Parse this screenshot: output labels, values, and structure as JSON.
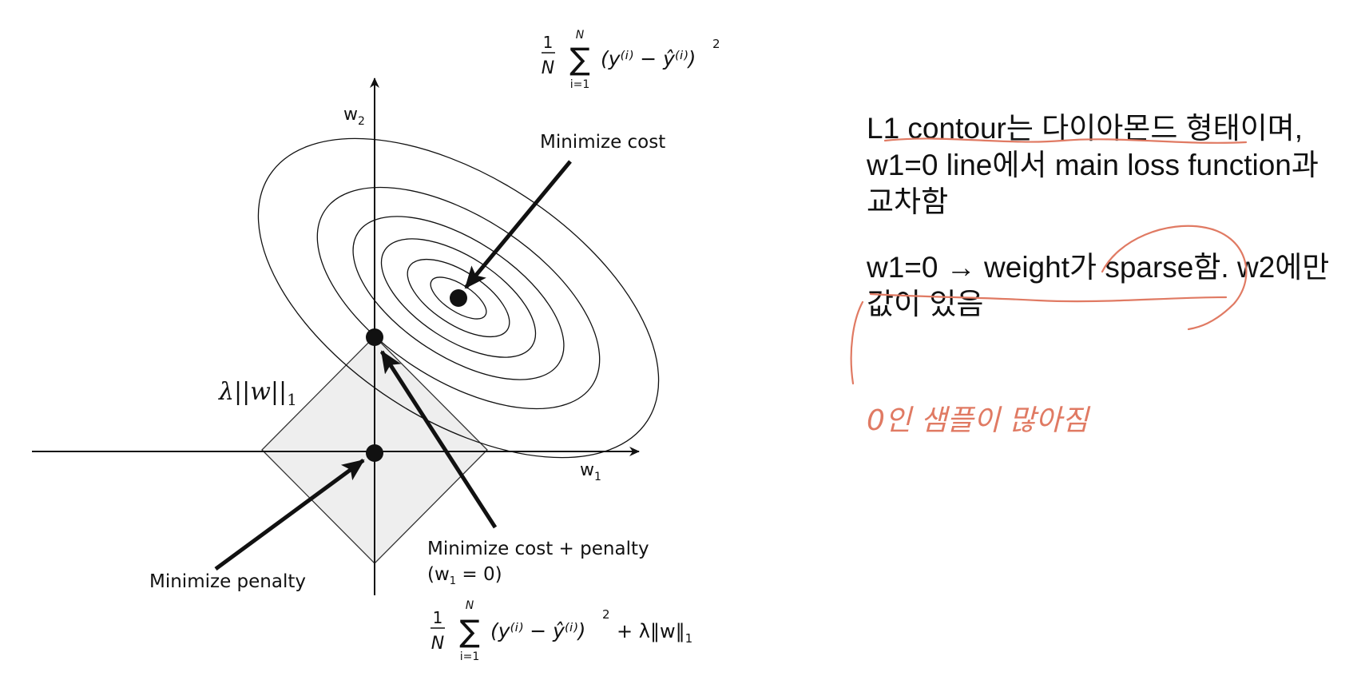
{
  "diagram": {
    "axis_w1": "w",
    "axis_w1_sub": "1",
    "axis_w2": "w",
    "axis_w2_sub": "2",
    "label_minimize_cost": "Minimize cost",
    "label_minimize_penalty": "Minimize penalty",
    "label_cost_penalty_line1": "Minimize cost + penalty",
    "label_cost_penalty_line2_pre": "(w",
    "label_cost_penalty_line2_sub": "1",
    "label_cost_penalty_line2_post": " = 0)",
    "penalty_symbol": "λ||w||",
    "penalty_symbol_sub": "1",
    "formula_top": {
      "frac_num": "1",
      "frac_den": "N",
      "sum": "∑",
      "sum_top": "N",
      "sum_bottom": "i=1",
      "body": "(y⁽ⁱ⁾ − ŷ⁽ⁱ⁾)",
      "power": "2"
    },
    "formula_bottom": {
      "frac_num": "1",
      "frac_den": "N",
      "sum": "∑",
      "sum_top": "N",
      "sum_bottom": "i=1",
      "body": "(y⁽ⁱ⁾ − ŷ⁽ⁱ⁾)",
      "power": "2",
      "tail": "+ λ‖w‖",
      "tail_sub": "1"
    }
  },
  "notes": {
    "line1": "L1 contour는 다이아몬드 형태이며,",
    "line2": "w1=0 line에서 main loss function과",
    "line3": "교차함",
    "line4": "w1=0 → weight가 sparse함. w2에만",
    "line5": "값이 있음",
    "handwritten": "0인 샘플이 많아짐"
  },
  "colors": {
    "annotation": "#e07a63",
    "diamond_fill": "#eeeeee",
    "ink": "#111111"
  }
}
